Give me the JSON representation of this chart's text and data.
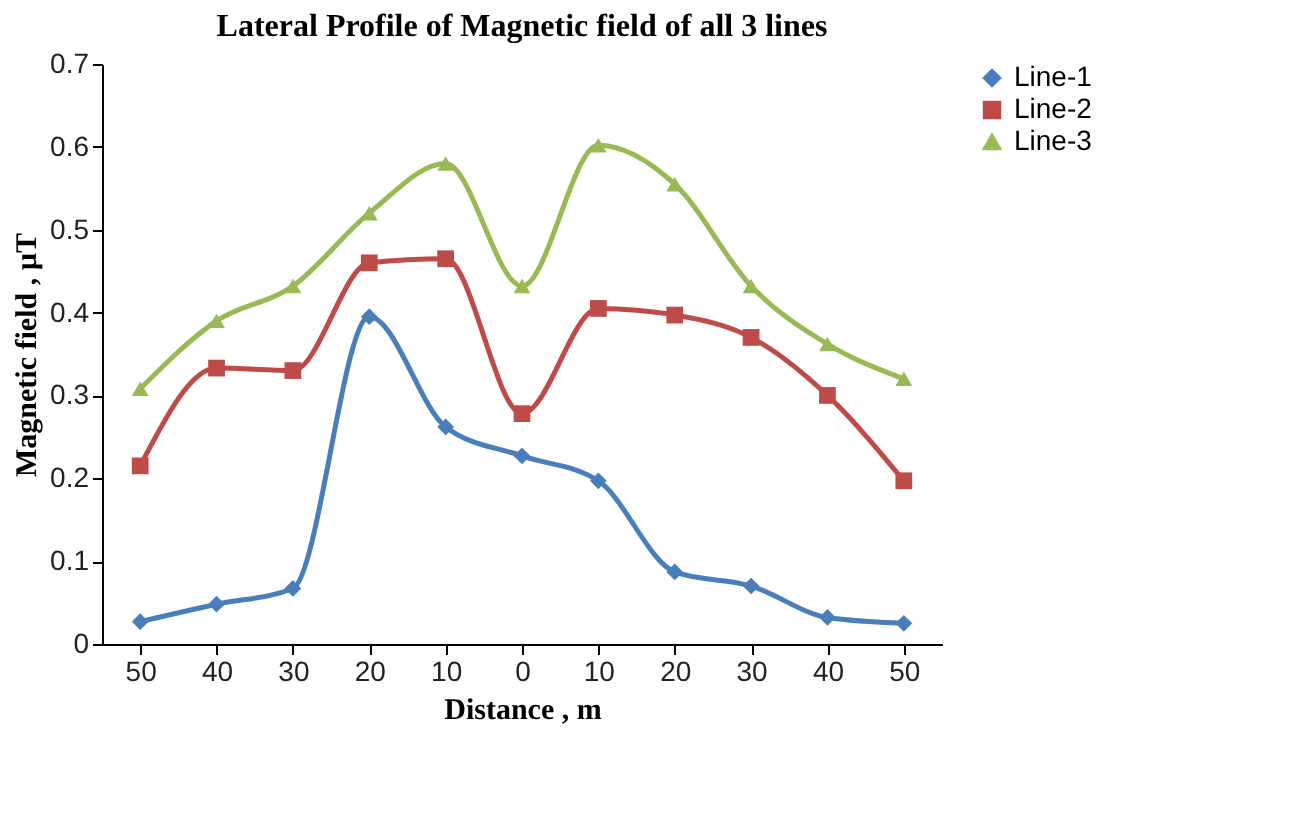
{
  "chart_data": {
    "type": "line",
    "title": "Lateral Profile of Magnetic field of all 3 lines",
    "xlabel": "Distance , m",
    "ylabel": "Magnetic field , µT",
    "categories": [
      "50",
      "40",
      "30",
      "20",
      "10",
      "0",
      "10",
      "20",
      "30",
      "40",
      "50"
    ],
    "series": [
      {
        "name": "Line-1",
        "color": "#4a7ebb",
        "marker": "diamond",
        "values": [
          0.027,
          0.048,
          0.067,
          0.395,
          0.262,
          0.227,
          0.197,
          0.087,
          0.07,
          0.032,
          0.025
        ]
      },
      {
        "name": "Line-2",
        "color": "#be4b48",
        "marker": "square",
        "values": [
          0.215,
          0.333,
          0.33,
          0.46,
          0.465,
          0.278,
          0.405,
          0.397,
          0.37,
          0.3,
          0.197
        ]
      },
      {
        "name": "Line-3",
        "color": "#98b954",
        "marker": "triangle",
        "values": [
          0.308,
          0.39,
          0.432,
          0.52,
          0.58,
          0.432,
          0.602,
          0.555,
          0.432,
          0.362,
          0.32
        ]
      }
    ],
    "ylim": [
      0,
      0.7
    ],
    "yticks": [
      0,
      0.1,
      0.2,
      0.3,
      0.4,
      0.5,
      0.6,
      0.7
    ],
    "grid": false,
    "legend": "right",
    "line_style": "solid"
  }
}
